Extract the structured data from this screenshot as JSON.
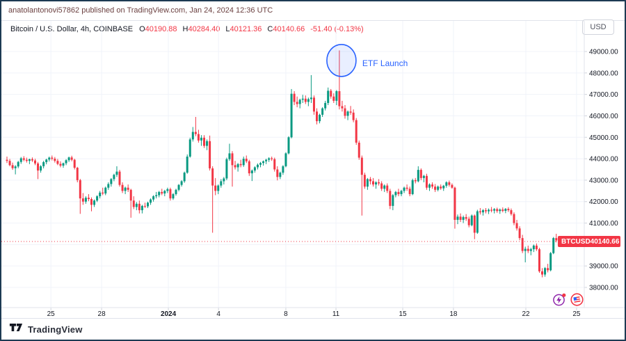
{
  "header": {
    "published_line": "anatolantonovi57862 published on TradingView.com, Jan 24, 2024 12:36 UTC"
  },
  "toolbar": {
    "currency_label": "USD"
  },
  "symbol_bar": {
    "symbol_text": "Bitcoin / U.S. Dollar, 4h, COINBASE",
    "o_label": "O",
    "o": "40190.88",
    "h_label": "H",
    "h": "40284.40",
    "l_label": "L",
    "l": "40121.36",
    "c_label": "C",
    "c": "40140.66",
    "change": "-51.40 (-0.13%)"
  },
  "price_label": {
    "symbol": "BTCUSD",
    "price": "40140.66"
  },
  "footer": {
    "brand": "TradingView"
  },
  "icons": [
    {
      "name": "lightning-event-icon",
      "color": "#8e24aa"
    },
    {
      "name": "us-flag-event-icon",
      "color": "#f23645"
    }
  ],
  "colors": {
    "up": "#089981",
    "down": "#f23645",
    "annotation_blue": "#2962ff",
    "grid": "#f0f3fa",
    "axis_text": "#131722",
    "header_text": "#6b4040",
    "badge_bg": "#f23645",
    "frame_border": "#1d3a53"
  },
  "chart_data": {
    "type": "candlestick",
    "symbol": "BTCUSD",
    "exchange": "COINBASE",
    "interval": "4h",
    "last_price": 40140.66,
    "grid": true,
    "legend_position": "none",
    "colors": {
      "up": "#089981",
      "down": "#f23645"
    },
    "y_axis": {
      "min": 38000,
      "max": 49000,
      "step": 1000,
      "labels": [
        "49000.00",
        "48000.00",
        "47000.00",
        "46000.00",
        "45000.00",
        "44000.00",
        "43000.00",
        "42000.00",
        "41000.00",
        "40000.00",
        "39000.00",
        "38000.00"
      ]
    },
    "x_axis": {
      "ticks": [
        {
          "label": "25",
          "index": 15.6
        },
        {
          "label": "28",
          "index": 33.6
        },
        {
          "label": "2024",
          "index": 57.3,
          "bold": true
        },
        {
          "label": "4",
          "index": 75.1
        },
        {
          "label": "8",
          "index": 99
        },
        {
          "label": "11",
          "index": 116.8
        },
        {
          "label": "15",
          "index": 140.5
        },
        {
          "label": "18",
          "index": 158.5
        },
        {
          "label": "22",
          "index": 184.2
        },
        {
          "label": "25",
          "index": 202.2
        }
      ]
    },
    "annotation": {
      "label": "ETF Launch",
      "candle_index": 118,
      "price_center": 48580
    },
    "candles": [
      [
        43950,
        44100,
        43800,
        43900
      ],
      [
        43900,
        43990,
        43650,
        43700
      ],
      [
        43700,
        43820,
        43480,
        43560
      ],
      [
        43560,
        43700,
        43270,
        43640
      ],
      [
        43640,
        43900,
        43560,
        43850
      ],
      [
        43850,
        44080,
        43760,
        44020
      ],
      [
        44020,
        44120,
        43880,
        43950
      ],
      [
        43950,
        44050,
        43820,
        43900
      ],
      [
        43900,
        44000,
        43750,
        43980
      ],
      [
        43980,
        44060,
        43850,
        43920
      ],
      [
        43920,
        44000,
        43700,
        43780
      ],
      [
        43780,
        43850,
        43050,
        43450
      ],
      [
        43450,
        43700,
        43350,
        43650
      ],
      [
        43650,
        43900,
        43550,
        43840
      ],
      [
        43840,
        44000,
        43740,
        43960
      ],
      [
        43960,
        44100,
        43870,
        44050
      ],
      [
        44050,
        44150,
        43920,
        44000
      ],
      [
        44000,
        44080,
        43820,
        43900
      ],
      [
        43900,
        43990,
        43700,
        43760
      ],
      [
        43760,
        43880,
        43600,
        43680
      ],
      [
        43680,
        43820,
        43580,
        43790
      ],
      [
        43790,
        43980,
        43700,
        43930
      ],
      [
        43930,
        44100,
        43850,
        44060
      ],
      [
        44060,
        44140,
        43880,
        43950
      ],
      [
        43950,
        44000,
        43500,
        43580
      ],
      [
        43580,
        43620,
        42900,
        43000
      ],
      [
        43000,
        43060,
        41430,
        42150
      ],
      [
        42150,
        42400,
        41850,
        42000
      ],
      [
        42000,
        42250,
        41900,
        42180
      ],
      [
        42180,
        42350,
        42020,
        42120
      ],
      [
        42120,
        42200,
        41550,
        41850
      ],
      [
        41850,
        42100,
        41750,
        42050
      ],
      [
        42050,
        42300,
        41980,
        42250
      ],
      [
        42250,
        42500,
        42150,
        42420
      ],
      [
        42420,
        42650,
        42300,
        42380
      ],
      [
        42380,
        42700,
        42300,
        42650
      ],
      [
        42650,
        42900,
        42550,
        42820
      ],
      [
        42820,
        43100,
        42700,
        43050
      ],
      [
        43050,
        43300,
        42950,
        43250
      ],
      [
        43250,
        43650,
        43150,
        43400
      ],
      [
        43400,
        43480,
        42700,
        42780
      ],
      [
        42780,
        42900,
        42400,
        42500
      ],
      [
        42500,
        42700,
        42350,
        42650
      ],
      [
        42650,
        42800,
        42450,
        42550
      ],
      [
        42550,
        42600,
        41250,
        42050
      ],
      [
        42050,
        42250,
        41650,
        41750
      ],
      [
        41750,
        41980,
        41600,
        41900
      ],
      [
        41900,
        42050,
        41450,
        41600
      ],
      [
        41600,
        41850,
        41450,
        41800
      ],
      [
        41800,
        41950,
        41700,
        41780
      ],
      [
        41780,
        42000,
        41700,
        41950
      ],
      [
        41950,
        42150,
        41850,
        42100
      ],
      [
        42100,
        42300,
        42000,
        42250
      ],
      [
        42250,
        42450,
        42150,
        42300
      ],
      [
        42300,
        42500,
        42200,
        42450
      ],
      [
        42450,
        42600,
        42300,
        42380
      ],
      [
        42380,
        42550,
        42250,
        42500
      ],
      [
        42500,
        42650,
        42400,
        42580
      ],
      [
        42580,
        42650,
        42050,
        42150
      ],
      [
        42150,
        42400,
        42080,
        42350
      ],
      [
        42350,
        42600,
        42280,
        42550
      ],
      [
        42550,
        42820,
        42480,
        42780
      ],
      [
        42780,
        43000,
        42700,
        42950
      ],
      [
        42950,
        43400,
        42880,
        43350
      ],
      [
        43350,
        44200,
        43300,
        44100
      ],
      [
        44100,
        44980,
        44050,
        44900
      ],
      [
        44900,
        45480,
        44800,
        45250
      ],
      [
        45250,
        45950,
        45050,
        45150
      ],
      [
        45150,
        45350,
        44750,
        44850
      ],
      [
        44850,
        45100,
        44600,
        44980
      ],
      [
        44980,
        45100,
        44500,
        44600
      ],
      [
        44600,
        44900,
        44400,
        44820
      ],
      [
        44820,
        45080,
        43450,
        43550
      ],
      [
        43550,
        43650,
        40550,
        42750
      ],
      [
        42750,
        43100,
        42300,
        42500
      ],
      [
        42500,
        42800,
        42350,
        42750
      ],
      [
        42750,
        43050,
        42650,
        42950
      ],
      [
        42950,
        43150,
        42800,
        43080
      ],
      [
        43080,
        44050,
        43000,
        43980
      ],
      [
        43980,
        44700,
        43900,
        44250
      ],
      [
        44250,
        44350,
        42700,
        43700
      ],
      [
        43700,
        43900,
        43500,
        43600
      ],
      [
        43600,
        43800,
        43400,
        43750
      ],
      [
        43750,
        43950,
        43600,
        43700
      ],
      [
        43700,
        44100,
        43620,
        44000
      ],
      [
        44000,
        44150,
        43800,
        43880
      ],
      [
        43880,
        43950,
        43200,
        43320
      ],
      [
        43320,
        43500,
        42960,
        43450
      ],
      [
        43450,
        43650,
        43350,
        43600
      ],
      [
        43600,
        43780,
        43500,
        43720
      ],
      [
        43720,
        43850,
        43600,
        43800
      ],
      [
        43800,
        43920,
        43680,
        43880
      ],
      [
        43880,
        44000,
        43750,
        43950
      ],
      [
        43950,
        44070,
        43850,
        44020
      ],
      [
        44020,
        44100,
        43900,
        43980
      ],
      [
        43980,
        44050,
        43400,
        43500
      ],
      [
        43500,
        43650,
        42990,
        43150
      ],
      [
        43150,
        43400,
        43050,
        43350
      ],
      [
        43350,
        43700,
        43250,
        43650
      ],
      [
        43650,
        44300,
        43600,
        44250
      ],
      [
        44250,
        45050,
        44200,
        45000
      ],
      [
        45000,
        47250,
        44950,
        47030
      ],
      [
        47030,
        47150,
        46500,
        46650
      ],
      [
        46650,
        46900,
        46400,
        46550
      ],
      [
        46550,
        46800,
        46350,
        46750
      ],
      [
        46750,
        46980,
        46600,
        46800
      ],
      [
        46800,
        46950,
        46550,
        46650
      ],
      [
        46650,
        46850,
        46450,
        46780
      ],
      [
        46780,
        47900,
        46600,
        46850
      ],
      [
        46850,
        46950,
        46050,
        46200
      ],
      [
        46200,
        46350,
        45600,
        45750
      ],
      [
        45750,
        46100,
        45650,
        46050
      ],
      [
        46050,
        46400,
        45950,
        46350
      ],
      [
        46350,
        46700,
        46250,
        46600
      ],
      [
        46600,
        47320,
        46500,
        47170
      ],
      [
        47170,
        47250,
        46800,
        46900
      ],
      [
        46900,
        47050,
        46600,
        46700
      ],
      [
        46700,
        47200,
        46500,
        47150
      ],
      [
        47150,
        49050,
        46300,
        46450
      ],
      [
        46450,
        46700,
        46200,
        46350
      ],
      [
        46350,
        46500,
        45870,
        46000
      ],
      [
        46000,
        46250,
        45800,
        46200
      ],
      [
        46200,
        46460,
        46050,
        46150
      ],
      [
        46150,
        46300,
        45700,
        45800
      ],
      [
        45800,
        45900,
        44650,
        44750
      ],
      [
        44750,
        44850,
        43950,
        44050
      ],
      [
        44050,
        44150,
        41350,
        43250
      ],
      [
        43250,
        43350,
        42600,
        42700
      ],
      [
        42700,
        43100,
        42550,
        43050
      ],
      [
        43050,
        43150,
        42800,
        42950
      ],
      [
        42950,
        43100,
        42700,
        42800
      ],
      [
        42800,
        42950,
        42600,
        42900
      ],
      [
        42900,
        43050,
        42750,
        42850
      ],
      [
        42850,
        42950,
        42500,
        42600
      ],
      [
        42600,
        42800,
        42450,
        42750
      ],
      [
        42750,
        42850,
        42400,
        42500
      ],
      [
        42500,
        42600,
        41650,
        41800
      ],
      [
        41800,
        42350,
        41600,
        42300
      ],
      [
        42300,
        42500,
        42200,
        42450
      ],
      [
        42450,
        42600,
        42250,
        42350
      ],
      [
        42350,
        42550,
        42250,
        42500
      ],
      [
        42500,
        42700,
        42400,
        42650
      ],
      [
        42650,
        42800,
        42500,
        42600
      ],
      [
        42600,
        42700,
        42250,
        42350
      ],
      [
        42350,
        43070,
        42300,
        43000
      ],
      [
        43000,
        43100,
        42850,
        42950
      ],
      [
        42950,
        43650,
        42900,
        43480
      ],
      [
        43480,
        43550,
        43000,
        43100
      ],
      [
        43100,
        43250,
        42900,
        43200
      ],
      [
        43200,
        43300,
        42550,
        42650
      ],
      [
        42650,
        42850,
        42500,
        42800
      ],
      [
        42800,
        42900,
        42600,
        42700
      ],
      [
        42700,
        42820,
        42450,
        42550
      ],
      [
        42550,
        42750,
        42480,
        42700
      ],
      [
        42700,
        42800,
        42550,
        42620
      ],
      [
        42620,
        42780,
        42500,
        42740
      ],
      [
        42740,
        42950,
        42650,
        42900
      ],
      [
        42900,
        42980,
        42700,
        42780
      ],
      [
        42780,
        42850,
        42600,
        42650
      ],
      [
        42650,
        42700,
        40740,
        41150
      ],
      [
        41150,
        41400,
        40950,
        41300
      ],
      [
        41300,
        41450,
        41050,
        41150
      ],
      [
        41150,
        41350,
        41000,
        41280
      ],
      [
        41280,
        41420,
        41100,
        41200
      ],
      [
        41200,
        41300,
        40800,
        40900
      ],
      [
        40900,
        41400,
        40850,
        41350
      ],
      [
        41350,
        41400,
        40250,
        40550
      ],
      [
        40550,
        41620,
        40500,
        41550
      ],
      [
        41550,
        41700,
        41400,
        41500
      ],
      [
        41500,
        41650,
        41350,
        41600
      ],
      [
        41600,
        41700,
        41450,
        41550
      ],
      [
        41550,
        41680,
        41420,
        41620
      ],
      [
        41620,
        41750,
        41500,
        41580
      ],
      [
        41580,
        41700,
        41450,
        41650
      ],
      [
        41650,
        41720,
        41480,
        41560
      ],
      [
        41560,
        41680,
        41430,
        41630
      ],
      [
        41630,
        41730,
        41500,
        41570
      ],
      [
        41570,
        41700,
        41460,
        41660
      ],
      [
        41660,
        41740,
        41520,
        41600
      ],
      [
        41600,
        41680,
        41350,
        41420
      ],
      [
        41420,
        41500,
        40900,
        41000
      ],
      [
        41000,
        41150,
        40650,
        40750
      ],
      [
        40750,
        40850,
        40200,
        40300
      ],
      [
        40300,
        40450,
        39600,
        39700
      ],
      [
        39700,
        39900,
        39170,
        39800
      ],
      [
        39800,
        39950,
        39600,
        39700
      ],
      [
        39700,
        39850,
        39500,
        39780
      ],
      [
        39780,
        40000,
        39650,
        39950
      ],
      [
        39950,
        40050,
        39700,
        39780
      ],
      [
        39780,
        39850,
        38680,
        38750
      ],
      [
        38750,
        38900,
        38470,
        38600
      ],
      [
        38600,
        38950,
        38500,
        38900
      ],
      [
        38900,
        39100,
        38700,
        38800
      ],
      [
        38800,
        39650,
        38750,
        39600
      ],
      [
        39600,
        40350,
        39550,
        40300
      ],
      [
        40300,
        40500,
        40100,
        40190
      ],
      [
        40190.88,
        40284.4,
        40121.36,
        40140.66
      ]
    ]
  }
}
